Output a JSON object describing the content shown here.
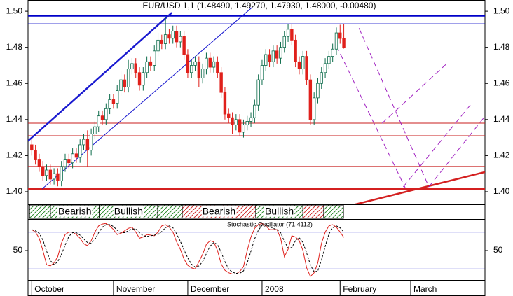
{
  "chart_data": [
    {
      "type": "candlestick",
      "title": "EUR/USD 1,1 (1.48490, 1.49270, 1.47930, 1.48000, -0.00480)",
      "x": [
        0,
        1,
        2,
        3,
        4,
        5,
        6,
        7,
        8,
        9,
        10,
        11,
        12,
        13,
        14,
        15,
        16,
        17,
        18,
        19,
        20,
        21,
        22,
        23,
        24,
        25,
        26,
        27,
        28,
        29,
        30,
        31,
        32,
        33,
        34,
        35,
        36,
        37,
        38,
        39,
        40,
        41,
        42,
        43,
        44,
        45,
        46,
        47,
        48,
        49,
        50,
        51,
        52,
        53,
        54,
        55,
        56,
        57,
        58,
        59,
        60,
        61,
        62,
        63,
        64,
        65,
        66,
        67,
        68,
        69,
        70,
        71,
        72,
        73,
        74,
        75,
        76,
        77,
        78,
        79,
        80,
        81,
        82,
        83,
        84
      ],
      "open": [
        1.426,
        1.423,
        1.418,
        1.414,
        1.409,
        1.412,
        1.407,
        1.41,
        1.406,
        1.414,
        1.418,
        1.416,
        1.421,
        1.419,
        1.426,
        1.429,
        1.423,
        1.432,
        1.436,
        1.442,
        1.44,
        1.446,
        1.451,
        1.449,
        1.456,
        1.462,
        1.458,
        1.468,
        1.471,
        1.466,
        1.459,
        1.466,
        1.472,
        1.47,
        1.478,
        1.484,
        1.482,
        1.487,
        1.485,
        1.489,
        1.483,
        1.486,
        1.476,
        1.466,
        1.47,
        1.472,
        1.463,
        1.468,
        1.474,
        1.469,
        1.472,
        1.466,
        1.455,
        1.443,
        1.441,
        1.437,
        1.44,
        1.433,
        1.437,
        1.439,
        1.441,
        1.448,
        1.462,
        1.47,
        1.476,
        1.472,
        1.478,
        1.474,
        1.48,
        1.486,
        1.49,
        1.484,
        1.472,
        1.468,
        1.475,
        1.462,
        1.44,
        1.452,
        1.46,
        1.466,
        1.471,
        1.475,
        1.479,
        1.488,
        1.4849
      ],
      "high": [
        1.429,
        1.426,
        1.421,
        1.417,
        1.415,
        1.415,
        1.413,
        1.413,
        1.417,
        1.421,
        1.421,
        1.424,
        1.424,
        1.429,
        1.432,
        1.434,
        1.435,
        1.439,
        1.445,
        1.445,
        1.449,
        1.454,
        1.454,
        1.459,
        1.467,
        1.465,
        1.473,
        1.474,
        1.474,
        1.469,
        1.469,
        1.475,
        1.475,
        1.481,
        1.488,
        1.487,
        1.497,
        1.49,
        1.492,
        1.492,
        1.489,
        1.489,
        1.479,
        1.473,
        1.475,
        1.475,
        1.471,
        1.477,
        1.477,
        1.475,
        1.475,
        1.469,
        1.458,
        1.446,
        1.444,
        1.443,
        1.443,
        1.44,
        1.442,
        1.444,
        1.451,
        1.465,
        1.473,
        1.479,
        1.479,
        1.481,
        1.481,
        1.483,
        1.489,
        1.493,
        1.493,
        1.487,
        1.475,
        1.478,
        1.478,
        1.465,
        1.455,
        1.463,
        1.469,
        1.474,
        1.478,
        1.482,
        1.491,
        1.4925,
        1.4927
      ],
      "low": [
        1.42,
        1.415,
        1.411,
        1.406,
        1.406,
        1.404,
        1.404,
        1.403,
        1.403,
        1.411,
        1.413,
        1.413,
        1.416,
        1.416,
        1.423,
        1.414,
        1.42,
        1.429,
        1.433,
        1.437,
        1.437,
        1.443,
        1.446,
        1.446,
        1.453,
        1.455,
        1.455,
        1.465,
        1.463,
        1.456,
        1.456,
        1.463,
        1.467,
        1.467,
        1.475,
        1.479,
        1.479,
        1.482,
        1.482,
        1.48,
        1.48,
        1.473,
        1.463,
        1.463,
        1.467,
        1.458,
        1.46,
        1.465,
        1.466,
        1.466,
        1.463,
        1.452,
        1.44,
        1.438,
        1.432,
        1.434,
        1.431,
        1.43,
        1.434,
        1.436,
        1.438,
        1.445,
        1.459,
        1.467,
        1.469,
        1.469,
        1.471,
        1.471,
        1.477,
        1.483,
        1.481,
        1.469,
        1.465,
        1.465,
        1.459,
        1.437,
        1.437,
        1.449,
        1.457,
        1.463,
        1.468,
        1.472,
        1.476,
        1.482,
        1.4793
      ],
      "close": [
        1.423,
        1.418,
        1.414,
        1.409,
        1.412,
        1.407,
        1.41,
        1.406,
        1.414,
        1.418,
        1.416,
        1.421,
        1.419,
        1.426,
        1.429,
        1.423,
        1.432,
        1.436,
        1.442,
        1.44,
        1.446,
        1.451,
        1.449,
        1.456,
        1.462,
        1.458,
        1.468,
        1.471,
        1.466,
        1.459,
        1.466,
        1.472,
        1.47,
        1.478,
        1.484,
        1.482,
        1.487,
        1.485,
        1.489,
        1.483,
        1.486,
        1.476,
        1.466,
        1.47,
        1.472,
        1.463,
        1.468,
        1.474,
        1.469,
        1.472,
        1.466,
        1.455,
        1.443,
        1.441,
        1.437,
        1.44,
        1.433,
        1.437,
        1.439,
        1.441,
        1.448,
        1.462,
        1.47,
        1.476,
        1.472,
        1.478,
        1.474,
        1.48,
        1.486,
        1.49,
        1.484,
        1.472,
        1.468,
        1.475,
        1.462,
        1.44,
        1.452,
        1.46,
        1.466,
        1.471,
        1.475,
        1.479,
        1.488,
        1.4849,
        1.48
      ],
      "up_color": "#0b6b4a",
      "down_color": "#e0201b",
      "xlim": [
        -1,
        122
      ],
      "ylim": [
        1.393,
        1.50625
      ],
      "yticks": [
        {
          "value": 1.4,
          "label": "1.40"
        },
        {
          "value": 1.42,
          "label": "1.42"
        },
        {
          "value": 1.44,
          "label": "1.44"
        },
        {
          "value": 1.46,
          "label": "1.46"
        },
        {
          "value": 1.48,
          "label": "1.48"
        },
        {
          "value": 1.5,
          "label": "1.50"
        }
      ],
      "horizontal_lines": [
        {
          "value": 1.4975,
          "color": "#0000c8",
          "width": 2.5
        },
        {
          "value": 1.493,
          "color": "#0000c8",
          "width": 1
        },
        {
          "value": 1.438,
          "color": "#c81e1e",
          "width": 1
        },
        {
          "value": 1.431,
          "color": "#c81e1e",
          "width": 1
        },
        {
          "value": 1.414,
          "color": "#c81e1e",
          "width": 1
        },
        {
          "value": 1.4015,
          "color": "#d42020",
          "width": 2.5
        }
      ],
      "trend_lines": [
        {
          "x": [
            -1,
            37.7
          ],
          "y": [
            1.4281,
            1.4992
          ],
          "color": "#1a1ad0",
          "width": 2.5
        },
        {
          "x": [
            2.8,
            59.4
          ],
          "y": [
            1.4016,
            1.5023
          ],
          "color": "#1a1ad0",
          "width": 1
        },
        {
          "x": [
            84.8,
            122
          ],
          "y": [
            1.3918,
            1.4109
          ],
          "color": "#d42020",
          "width": 2.5
        },
        {
          "x": [
            82,
            100.5
          ],
          "y": [
            1.4809,
            1.4023
          ],
          "color": "#a020c0",
          "width": 1,
          "dashed": true
        },
        {
          "x": [
            88.1,
            106.9
          ],
          "y": [
            1.4906,
            1.4027
          ],
          "color": "#a020c0",
          "width": 1,
          "dashed": true
        },
        {
          "x": [
            94.3,
            112.2
          ],
          "y": [
            1.4379,
            1.4719
          ],
          "color": "#a020c0",
          "width": 1,
          "dashed": true
        },
        {
          "x": [
            100,
            118.2
          ],
          "y": [
            1.4027,
            1.4484
          ],
          "color": "#a020c0",
          "width": 1,
          "dashed": true
        },
        {
          "x": [
            106.9,
            122
          ],
          "y": [
            1.4027,
            1.4418
          ],
          "color": "#a020c0",
          "width": 1,
          "dashed": true
        }
      ],
      "regime_bands": [
        {
          "x": [
            -0.6,
            5
          ],
          "color": "#2e8b2e"
        },
        {
          "label": "Bearish",
          "x": [
            5,
            18.2
          ],
          "color": "#2e8b2e"
        },
        {
          "label": "Bullish",
          "x": [
            18.2,
            33.9
          ],
          "color": "#2e8b2e"
        },
        {
          "x": [
            33.9,
            40.5
          ],
          "color": "#2e8b2e"
        },
        {
          "label": "Bearish",
          "x": [
            40.5,
            60.3
          ],
          "color": "#d03030"
        },
        {
          "label": "Bullish",
          "x": [
            60.3,
            73
          ],
          "color": "#2e8b2e"
        },
        {
          "x": [
            73,
            78.6
          ],
          "color": "#d03030"
        },
        {
          "x": [
            78.6,
            83.9
          ],
          "color": "#2e8b2e"
        }
      ]
    },
    {
      "type": "line",
      "title": "Stochastic Oscillator (71.4112)",
      "series": [
        {
          "color": "#e0201b",
          "values": [
            84,
            80,
            70,
            50,
            27,
            25,
            30,
            40,
            62,
            76,
            80,
            80,
            76,
            70,
            61,
            58,
            66,
            80,
            90,
            93,
            94,
            90,
            84,
            76,
            78,
            82,
            86,
            88,
            80,
            70,
            72,
            76,
            75,
            74,
            80,
            90,
            92,
            88,
            80,
            64,
            52,
            36,
            26,
            22,
            20,
            32,
            44,
            60,
            66,
            64,
            50,
            28,
            18,
            14,
            12,
            12,
            16,
            24,
            50,
            72,
            86,
            92,
            94,
            90,
            84,
            84,
            84,
            70,
            40,
            52,
            74,
            72,
            66,
            50,
            22,
            8,
            14,
            30,
            62,
            80,
            90,
            92,
            88,
            80,
            71.4112
          ]
        },
        {
          "color": "#000000",
          "dashed": true,
          "values": [
            84,
            82,
            78,
            67,
            49,
            34,
            27,
            32,
            44,
            59,
            73,
            79,
            79,
            75,
            69,
            63,
            62,
            68,
            79,
            88,
            92,
            92,
            89,
            83,
            79,
            79,
            82,
            85,
            85,
            79,
            74,
            73,
            74,
            75,
            76,
            81,
            87,
            90,
            87,
            77,
            65,
            51,
            38,
            28,
            23,
            25,
            32,
            45,
            57,
            63,
            60,
            47,
            32,
            20,
            15,
            13,
            13,
            17,
            30,
            49,
            69,
            83,
            91,
            92,
            89,
            86,
            84,
            79,
            65,
            54,
            55,
            66,
            71,
            63,
            46,
            27,
            15,
            17,
            35,
            57,
            77,
            87,
            90,
            87,
            80
          ]
        }
      ],
      "xlim": [
        -1,
        122
      ],
      "ylim": [
        0,
        100
      ],
      "yticks": [
        50
      ],
      "horizontal_lines": [
        {
          "value": 80,
          "color": "#0000c8",
          "width": 1
        },
        {
          "value": 20,
          "color": "#0000c8",
          "width": 1
        }
      ],
      "xticks": [
        {
          "value": 0,
          "label": "October"
        },
        {
          "value": 22,
          "label": "November"
        },
        {
          "value": 42,
          "label": "December"
        },
        {
          "value": 62,
          "label": "2008"
        },
        {
          "value": 83,
          "label": "February"
        },
        {
          "value": 102,
          "label": "March"
        }
      ]
    }
  ]
}
